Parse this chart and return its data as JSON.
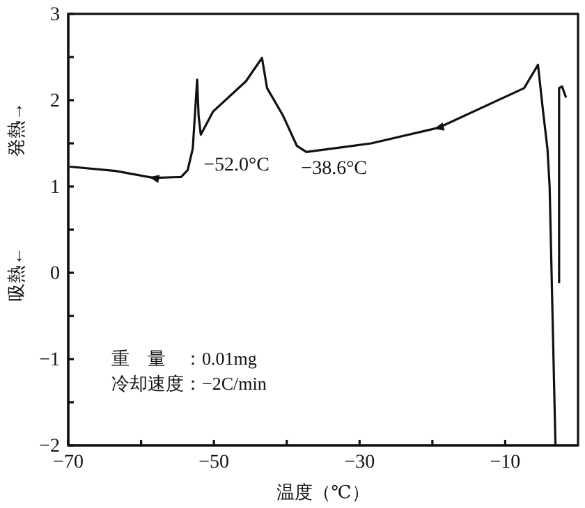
{
  "chart_data": {
    "type": "line",
    "xlabel": "温度（℃）",
    "ylabel": "吸熱←　　　　　発熱→",
    "xlim": [
      -70,
      0
    ],
    "ylim": [
      -2,
      3
    ],
    "xticks": [
      -70,
      {
        "value": -60,
        "label": null
      },
      -50,
      {
        "value": -40,
        "label": null
      },
      -30,
      {
        "value": -20,
        "label": null
      },
      -10
    ],
    "yticks": [
      -2,
      {
        "value": -1.5,
        "label": null
      },
      -1,
      {
        "value": -0.5,
        "label": null
      },
      0,
      {
        "value": 0.5,
        "label": null
      },
      1,
      {
        "value": 1.5,
        "label": null
      },
      2,
      {
        "value": 2.5,
        "label": null
      },
      3
    ],
    "grid": false,
    "marker": "none",
    "line_style": "solid",
    "series": [
      {
        "color": "#111111",
        "x": [
          -69.8,
          -63.5,
          -58.3,
          -54.5,
          -53.6,
          -52.9,
          -52.3,
          -52.1,
          -51.8,
          -50.1,
          -45.6,
          -43.4,
          -42.7,
          -40.5,
          -38.6,
          -37.3,
          -28.4,
          -19.2,
          -7.4,
          -5.5,
          -4.8,
          -4.2,
          -3.9,
          -3.1
        ],
        "values": [
          1.23,
          1.18,
          1.1,
          1.11,
          1.19,
          1.44,
          2.24,
          1.82,
          1.6,
          1.87,
          2.22,
          2.49,
          2.14,
          1.82,
          1.47,
          1.4,
          1.5,
          1.68,
          2.14,
          2.41,
          1.87,
          1.44,
          1.0,
          -2
        ]
      },
      {
        "color": "#111111",
        "x": [
          -2.6,
          -2.6,
          -2.2,
          -1.65
        ],
        "values": [
          -0.12,
          2.14,
          2.16,
          2.03
        ]
      }
    ],
    "annotations": [
      {
        "text": "−52.0°C",
        "x": -52.0,
        "y": 1.44
      },
      {
        "text": "−38.6°C",
        "x": -38.6,
        "y": 1.4
      },
      "重　量　：0.01mg",
      "冷却速度：−2C/min"
    ]
  }
}
